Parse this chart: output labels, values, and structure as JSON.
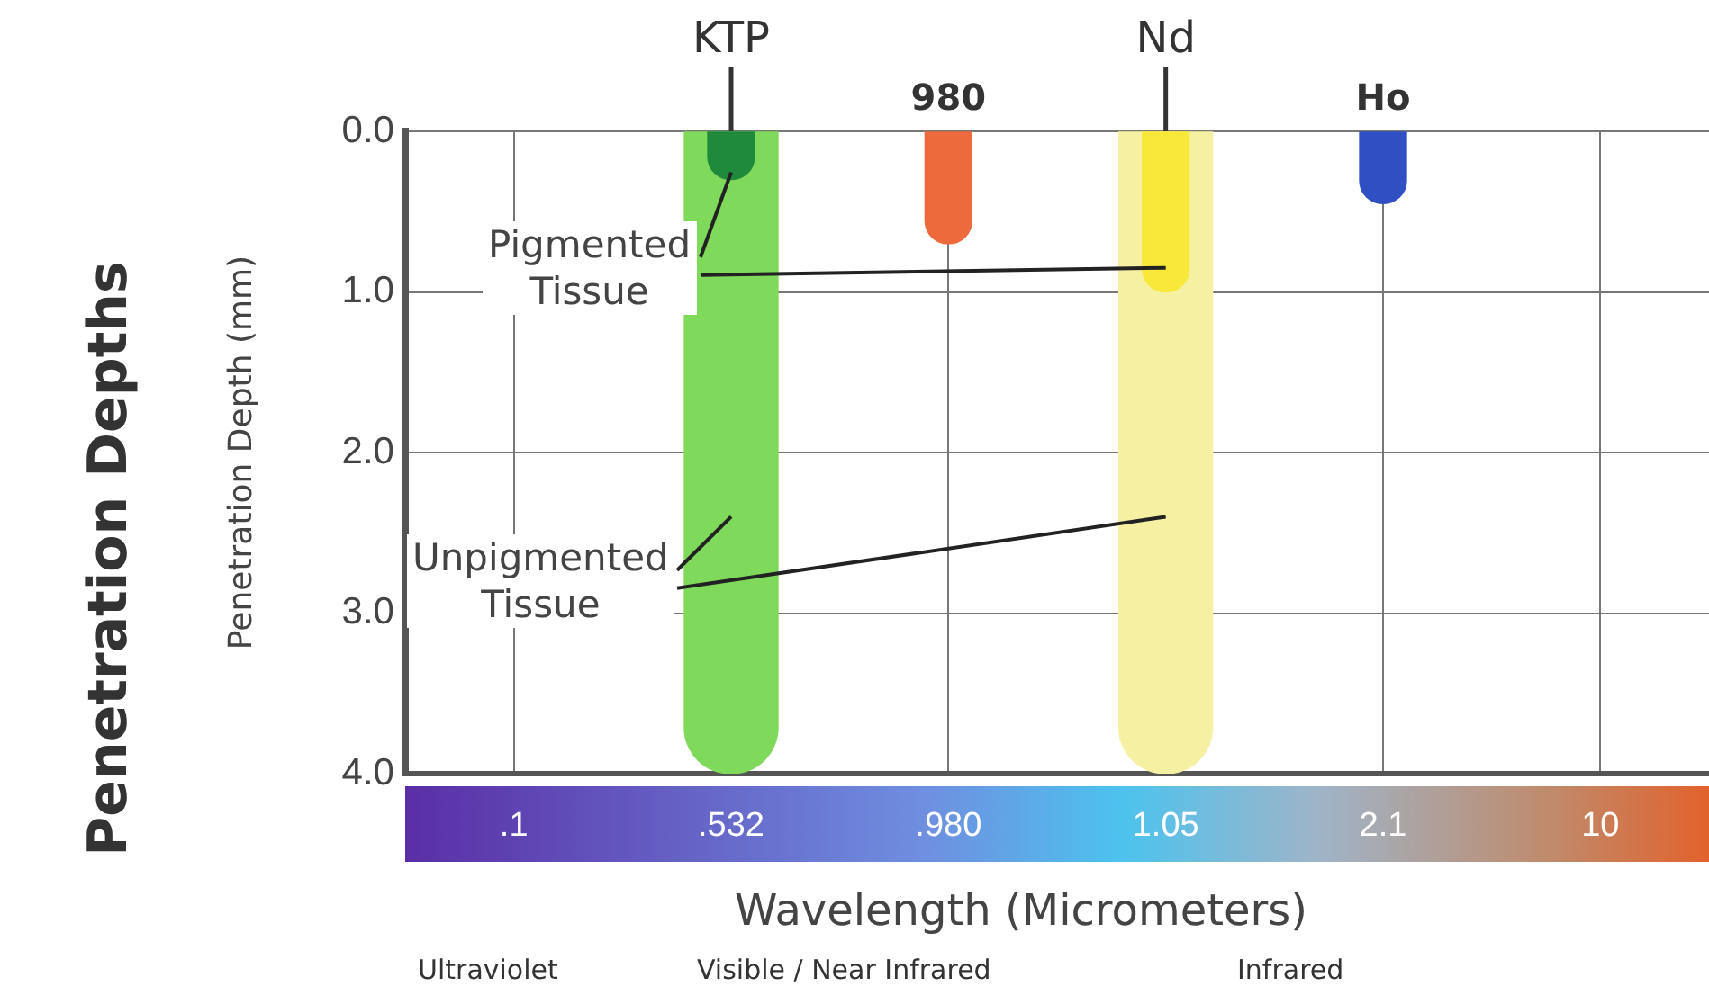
{
  "chart_data": {
    "type": "bar",
    "title": "Penetration Depths",
    "xlabel": "Wavelength (Micrometers)",
    "ylabel": "Penetration Depth (mm)",
    "categories": [
      ".1",
      ".532",
      ".980",
      "1.05",
      "2.1",
      "10"
    ],
    "series": [
      {
        "name": "Pigmented Tissue",
        "colors": [
          null,
          "#1f8a3c",
          "#ec6a3c",
          "#f7e83a",
          "#2f4fc2",
          null
        ],
        "values": [
          null,
          0.3,
          0.7,
          1.0,
          0.45,
          null
        ]
      },
      {
        "name": "Unpigmented Tissue",
        "colors": [
          null,
          "#7fd95a",
          null,
          "#f6f1a2",
          null,
          null
        ],
        "values": [
          null,
          4.0,
          null,
          4.0,
          null,
          null
        ]
      }
    ],
    "ylim": [
      4.0,
      0.0
    ],
    "yticks": [
      {
        "value": 0,
        "label": "0.0"
      },
      {
        "value": 1,
        "label": "1.0"
      },
      {
        "value": 2,
        "label": "2.0"
      },
      {
        "value": 3,
        "label": "3.0"
      },
      {
        "value": 4,
        "label": "4.0"
      }
    ],
    "grid": true,
    "annotations": [
      {
        "text": "KTP",
        "x": ".532",
        "y": 0
      },
      {
        "text": "980",
        "x": ".980",
        "y": 0
      },
      {
        "text": "Nd",
        "x": "1.05",
        "y": 0
      },
      {
        "text": "Ho",
        "x": "2.1",
        "y": 0
      },
      "Ultraviolet",
      "Visible / Near Infrared",
      "Infrared"
    ]
  }
}
